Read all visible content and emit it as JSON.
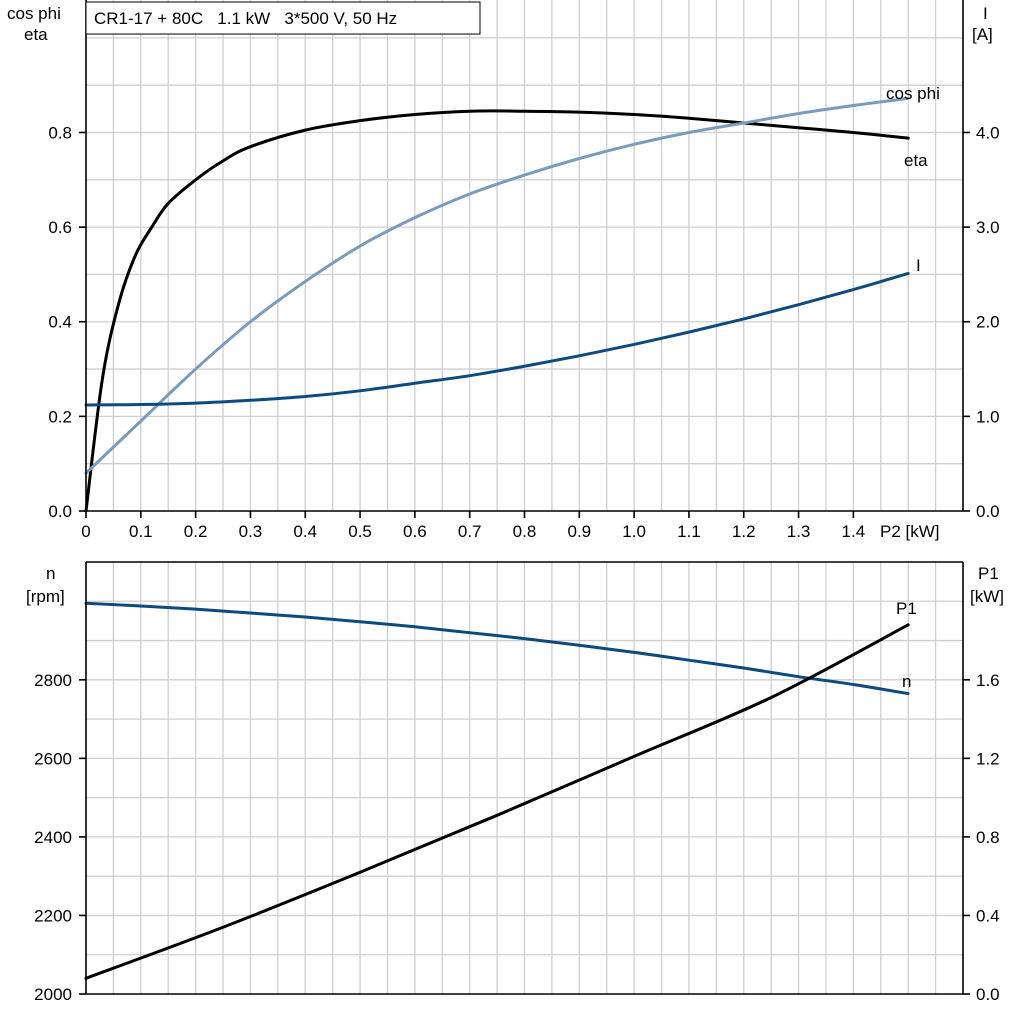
{
  "title": "CR1-17 + 80C   1.1 kW   3*500 V, 50 Hz",
  "colors": {
    "eta": "#000000",
    "cosphi": "#7a9cbc",
    "current": "#0d4a80",
    "speed": "#0d4a80",
    "p1": "#000000",
    "grid": "#cfcfcf"
  },
  "chart_data": [
    {
      "type": "line",
      "x_label": "P2 [kW]",
      "x_ticks": [
        "0",
        "0.1",
        "0.2",
        "0.3",
        "0.4",
        "0.5",
        "0.6",
        "0.7",
        "0.8",
        "0.9",
        "1.0",
        "1.1",
        "1.2",
        "1.3",
        "1.4"
      ],
      "x_range": [
        0,
        1.6
      ],
      "y_left_label_1": "cos phi",
      "y_left_label_2": "eta",
      "y_left_range": [
        0,
        1.08
      ],
      "y_left_ticks": [
        "0.0",
        "0.2",
        "0.4",
        "0.6",
        "0.8"
      ],
      "y_right_label_1": "I",
      "y_right_label_2": "[A]",
      "y_right_range": [
        0,
        5.4
      ],
      "y_right_ticks": [
        "0.0",
        "1.0",
        "2.0",
        "3.0",
        "4.0"
      ],
      "grid": true,
      "series": [
        {
          "name": "eta",
          "axis": "left",
          "points": [
            [
              0.0,
              0.0
            ],
            [
              0.03,
              0.28
            ],
            [
              0.06,
              0.44
            ],
            [
              0.09,
              0.54
            ],
            [
              0.12,
              0.6
            ],
            [
              0.15,
              0.65
            ],
            [
              0.2,
              0.7
            ],
            [
              0.25,
              0.74
            ],
            [
              0.3,
              0.77
            ],
            [
              0.4,
              0.805
            ],
            [
              0.5,
              0.825
            ],
            [
              0.6,
              0.838
            ],
            [
              0.7,
              0.845
            ],
            [
              0.8,
              0.845
            ],
            [
              0.9,
              0.843
            ],
            [
              1.0,
              0.838
            ],
            [
              1.1,
              0.83
            ],
            [
              1.2,
              0.82
            ],
            [
              1.3,
              0.81
            ],
            [
              1.4,
              0.8
            ],
            [
              1.5,
              0.788
            ]
          ]
        },
        {
          "name": "cos phi",
          "axis": "left",
          "points": [
            [
              0.0,
              0.08
            ],
            [
              0.1,
              0.19
            ],
            [
              0.2,
              0.3
            ],
            [
              0.3,
              0.4
            ],
            [
              0.4,
              0.485
            ],
            [
              0.5,
              0.56
            ],
            [
              0.6,
              0.62
            ],
            [
              0.7,
              0.67
            ],
            [
              0.8,
              0.71
            ],
            [
              0.9,
              0.745
            ],
            [
              1.0,
              0.775
            ],
            [
              1.1,
              0.8
            ],
            [
              1.2,
              0.82
            ],
            [
              1.3,
              0.84
            ],
            [
              1.4,
              0.857
            ],
            [
              1.5,
              0.872
            ]
          ]
        },
        {
          "name": "I",
          "axis": "right",
          "points": [
            [
              0.0,
              1.12
            ],
            [
              0.1,
              1.125
            ],
            [
              0.2,
              1.14
            ],
            [
              0.3,
              1.17
            ],
            [
              0.4,
              1.21
            ],
            [
              0.5,
              1.27
            ],
            [
              0.6,
              1.35
            ],
            [
              0.7,
              1.43
            ],
            [
              0.8,
              1.53
            ],
            [
              0.9,
              1.64
            ],
            [
              1.0,
              1.76
            ],
            [
              1.1,
              1.89
            ],
            [
              1.2,
              2.03
            ],
            [
              1.3,
              2.18
            ],
            [
              1.4,
              2.34
            ],
            [
              1.5,
              2.51
            ]
          ]
        }
      ]
    },
    {
      "type": "line",
      "x_range": [
        0,
        1.6
      ],
      "y_left_label_1": "n",
      "y_left_label_2": "[rpm]",
      "y_left_range": [
        2000,
        3100
      ],
      "y_left_ticks": [
        "2000",
        "2200",
        "2400",
        "2600",
        "2800"
      ],
      "y_right_label_1": "P1",
      "y_right_label_2": "[kW]",
      "y_right_range": [
        0,
        2.2
      ],
      "y_right_ticks": [
        "0.0",
        "0.4",
        "0.8",
        "1.2",
        "1.6"
      ],
      "grid": true,
      "series": [
        {
          "name": "n",
          "axis": "left",
          "points": [
            [
              0.0,
              2995
            ],
            [
              0.1,
              2988
            ],
            [
              0.2,
              2980
            ],
            [
              0.3,
              2970
            ],
            [
              0.4,
              2960
            ],
            [
              0.5,
              2948
            ],
            [
              0.6,
              2935
            ],
            [
              0.7,
              2920
            ],
            [
              0.8,
              2905
            ],
            [
              0.9,
              2888
            ],
            [
              1.0,
              2870
            ],
            [
              1.1,
              2850
            ],
            [
              1.2,
              2830
            ],
            [
              1.3,
              2808
            ],
            [
              1.4,
              2788
            ],
            [
              1.5,
              2765
            ]
          ]
        },
        {
          "name": "P1",
          "axis": "right",
          "points": [
            [
              0.0,
              0.08
            ],
            [
              0.25,
              0.34
            ],
            [
              0.5,
              0.62
            ],
            [
              0.75,
              0.91
            ],
            [
              1.0,
              1.21
            ],
            [
              1.25,
              1.51
            ],
            [
              1.5,
              1.88
            ]
          ]
        }
      ]
    }
  ]
}
